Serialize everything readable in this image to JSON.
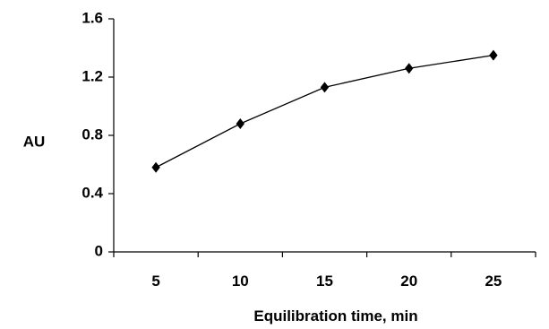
{
  "chart_data": {
    "type": "line",
    "xlabel": "Equilibration time, min",
    "ylabel": "AU",
    "categories": [
      "5",
      "10",
      "15",
      "20",
      "25"
    ],
    "x": [
      5,
      10,
      15,
      20,
      25
    ],
    "series": [
      {
        "values": [
          0.58,
          0.88,
          1.13,
          1.26,
          1.35
        ],
        "color": "#000000",
        "marker": "diamond"
      }
    ],
    "ylim": [
      0,
      1.6
    ],
    "yticks": [
      0,
      0.4,
      0.8,
      1.2,
      1.6
    ],
    "ytick_labels": [
      "0",
      "0.4",
      "0.8",
      "1.2",
      "1.6"
    ],
    "grid": false,
    "legend": "none"
  }
}
